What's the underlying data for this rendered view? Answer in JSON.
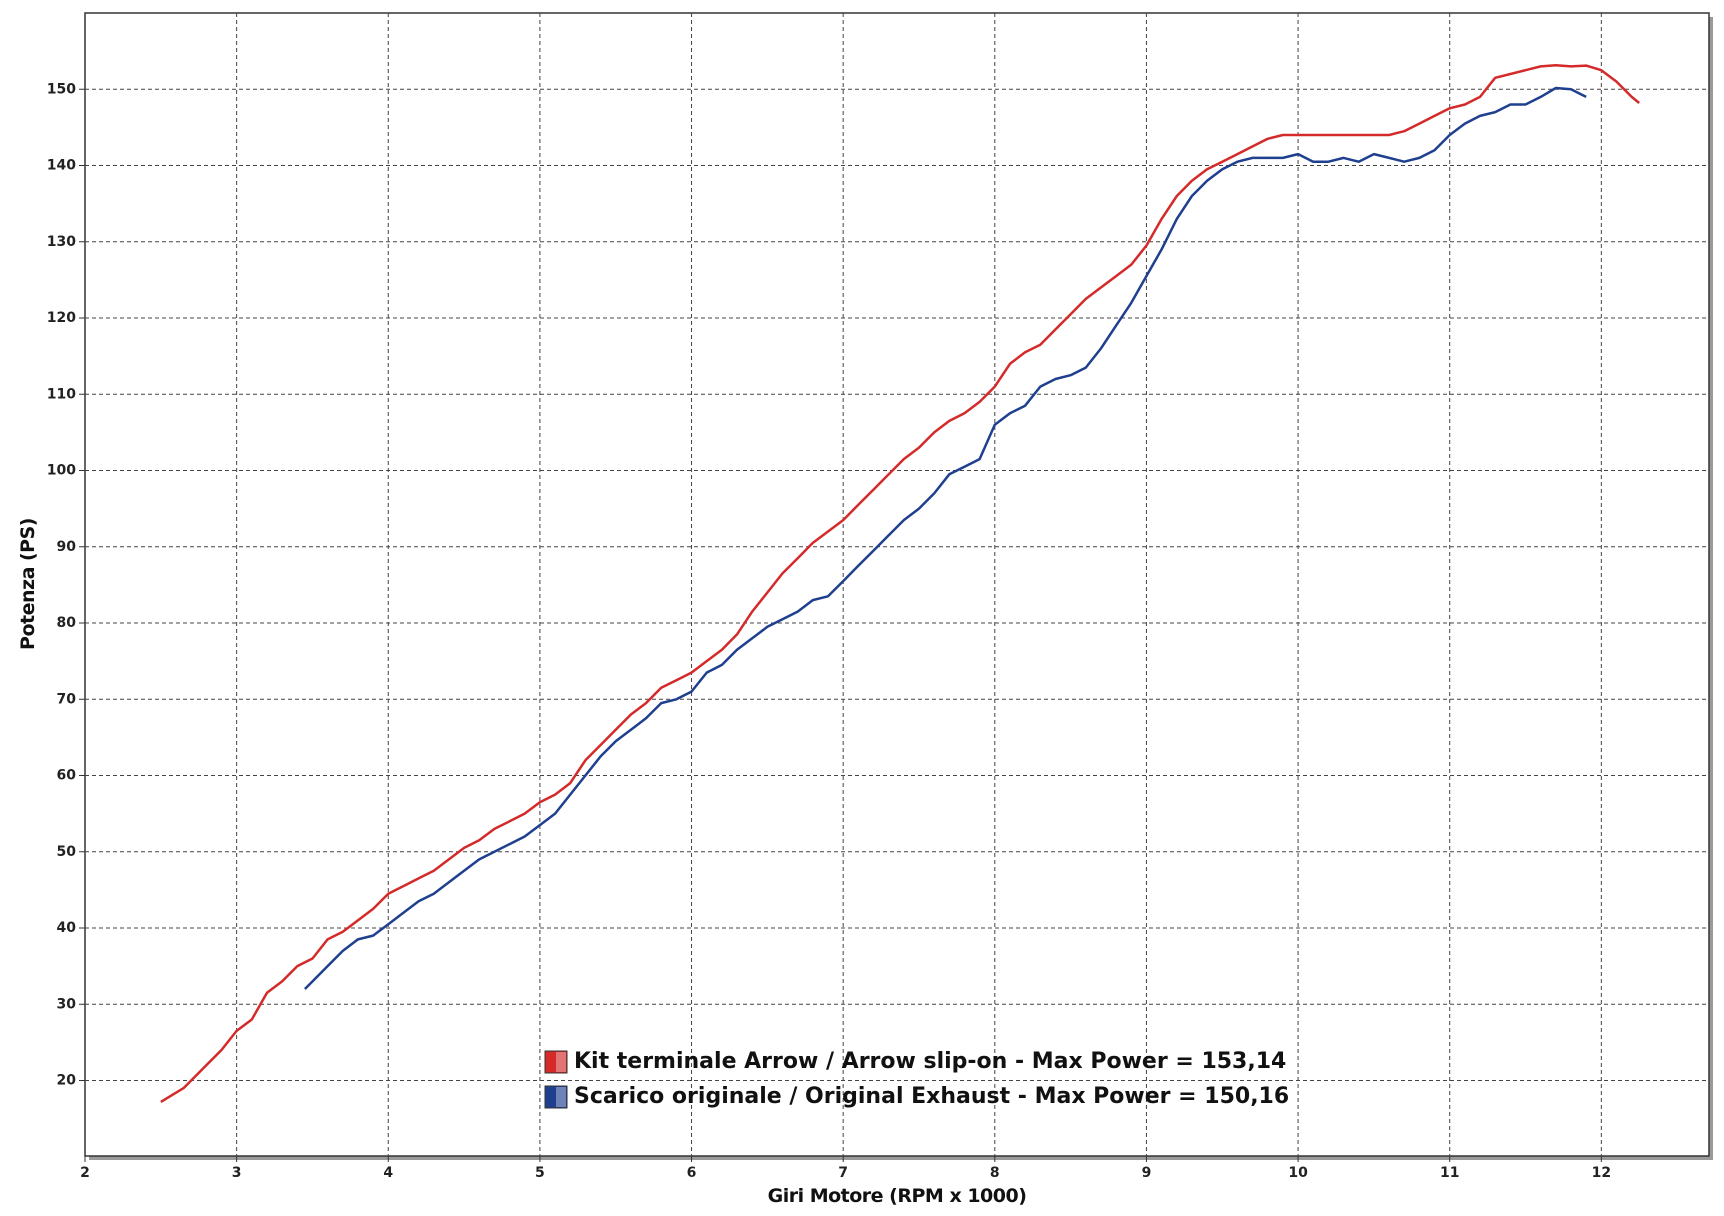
{
  "chart_data": {
    "type": "line",
    "xlabel": "Giri Motore (RPM x 1000)",
    "ylabel": "Potenza (PS)",
    "xlim": [
      2,
      12.71
    ],
    "ylim": [
      10.1,
      160
    ],
    "xticks": [
      2,
      3,
      4,
      5,
      6,
      7,
      8,
      9,
      10,
      11,
      12
    ],
    "yticks": [
      20,
      30,
      40,
      50,
      60,
      70,
      80,
      90,
      100,
      110,
      120,
      130,
      140,
      150
    ],
    "grid": true,
    "legend": "bottom",
    "series": [
      {
        "name": "Kit terminale Arrow / Arrow slip-on - Max Power = 153,14",
        "color": "#d42a2a",
        "x": [
          2.5,
          2.65,
          2.8,
          2.9,
          3.0,
          3.1,
          3.2,
          3.3,
          3.4,
          3.5,
          3.6,
          3.7,
          3.8,
          3.9,
          4.0,
          4.1,
          4.2,
          4.3,
          4.4,
          4.5,
          4.6,
          4.7,
          4.8,
          4.9,
          5.0,
          5.1,
          5.2,
          5.3,
          5.4,
          5.5,
          5.6,
          5.7,
          5.8,
          5.9,
          6.0,
          6.1,
          6.2,
          6.3,
          6.4,
          6.5,
          6.6,
          6.7,
          6.8,
          6.9,
          7.0,
          7.1,
          7.2,
          7.3,
          7.4,
          7.5,
          7.6,
          7.7,
          7.8,
          7.9,
          8.0,
          8.1,
          8.2,
          8.3,
          8.4,
          8.5,
          8.6,
          8.7,
          8.8,
          8.9,
          9.0,
          9.1,
          9.2,
          9.3,
          9.4,
          9.5,
          9.6,
          9.7,
          9.8,
          9.9,
          10.0,
          10.2,
          10.4,
          10.6,
          10.7,
          10.8,
          10.9,
          11.0,
          11.1,
          11.2,
          11.3,
          11.4,
          11.5,
          11.6,
          11.7,
          11.8,
          11.9,
          12.0,
          12.1,
          12.2,
          12.25
        ],
        "values": [
          17.2,
          19,
          22,
          24,
          26.5,
          28,
          31.5,
          33,
          35,
          36,
          38.5,
          39.5,
          41,
          42.5,
          44.5,
          45.5,
          46.5,
          47.5,
          49,
          50.5,
          51.5,
          53,
          54,
          55,
          56.5,
          57.5,
          59,
          62,
          64,
          66,
          68,
          69.5,
          71.5,
          72.5,
          73.5,
          75,
          76.5,
          78.5,
          81.5,
          84,
          86.5,
          88.5,
          90.5,
          92,
          93.5,
          95.5,
          97.5,
          99.5,
          101.5,
          103,
          105,
          106.5,
          107.5,
          109,
          111,
          114,
          115.5,
          116.5,
          118.5,
          120.5,
          122.5,
          124,
          125.5,
          127,
          129.5,
          133,
          136,
          138,
          139.5,
          140.5,
          141.5,
          142.5,
          143.5,
          144,
          144,
          144,
          144,
          144,
          144.5,
          145.5,
          146.5,
          147.5,
          148,
          149,
          151.5,
          152,
          152.5,
          153,
          153.14,
          153,
          153.1,
          152.5,
          151,
          149,
          148.2
        ]
      },
      {
        "name": "Scarico originale / Original Exhaust - Max Power = 150,16",
        "color": "#1f3f8f",
        "x": [
          3.45,
          3.5,
          3.6,
          3.7,
          3.8,
          3.9,
          4.0,
          4.1,
          4.2,
          4.3,
          4.4,
          4.5,
          4.6,
          4.7,
          4.8,
          4.9,
          5.0,
          5.1,
          5.2,
          5.3,
          5.4,
          5.5,
          5.6,
          5.7,
          5.8,
          5.9,
          6.0,
          6.1,
          6.2,
          6.3,
          6.4,
          6.5,
          6.6,
          6.7,
          6.8,
          6.9,
          7.0,
          7.1,
          7.2,
          7.3,
          7.4,
          7.5,
          7.6,
          7.7,
          7.8,
          7.9,
          8.0,
          8.1,
          8.2,
          8.3,
          8.4,
          8.5,
          8.6,
          8.7,
          8.8,
          8.9,
          9.0,
          9.1,
          9.2,
          9.3,
          9.4,
          9.5,
          9.6,
          9.7,
          9.8,
          9.9,
          10.0,
          10.1,
          10.2,
          10.3,
          10.4,
          10.5,
          10.6,
          10.7,
          10.8,
          10.9,
          11.0,
          11.1,
          11.2,
          11.3,
          11.4,
          11.5,
          11.6,
          11.7,
          11.8,
          11.85,
          11.9
        ],
        "values": [
          32,
          33,
          35,
          37,
          38.5,
          39,
          40.5,
          42,
          43.5,
          44.5,
          46,
          47.5,
          49,
          50,
          51,
          52,
          53.5,
          55,
          57.5,
          60,
          62.5,
          64.5,
          66,
          67.5,
          69.5,
          70,
          71,
          73.5,
          74.5,
          76.5,
          78,
          79.5,
          80.5,
          81.5,
          83,
          83.5,
          85.5,
          87.5,
          89.5,
          91.5,
          93.5,
          95,
          97,
          99.5,
          100.5,
          101.5,
          106,
          107.5,
          108.5,
          111,
          112,
          112.5,
          113.5,
          116,
          119,
          122,
          125.5,
          129,
          133,
          136,
          138,
          139.5,
          140.5,
          141,
          141,
          141,
          141.5,
          140.5,
          140.5,
          141,
          140.5,
          141.5,
          141,
          140.5,
          141,
          142,
          144,
          145.5,
          146.5,
          147,
          148,
          148,
          149,
          150.16,
          150,
          149.5,
          149
        ]
      }
    ]
  }
}
